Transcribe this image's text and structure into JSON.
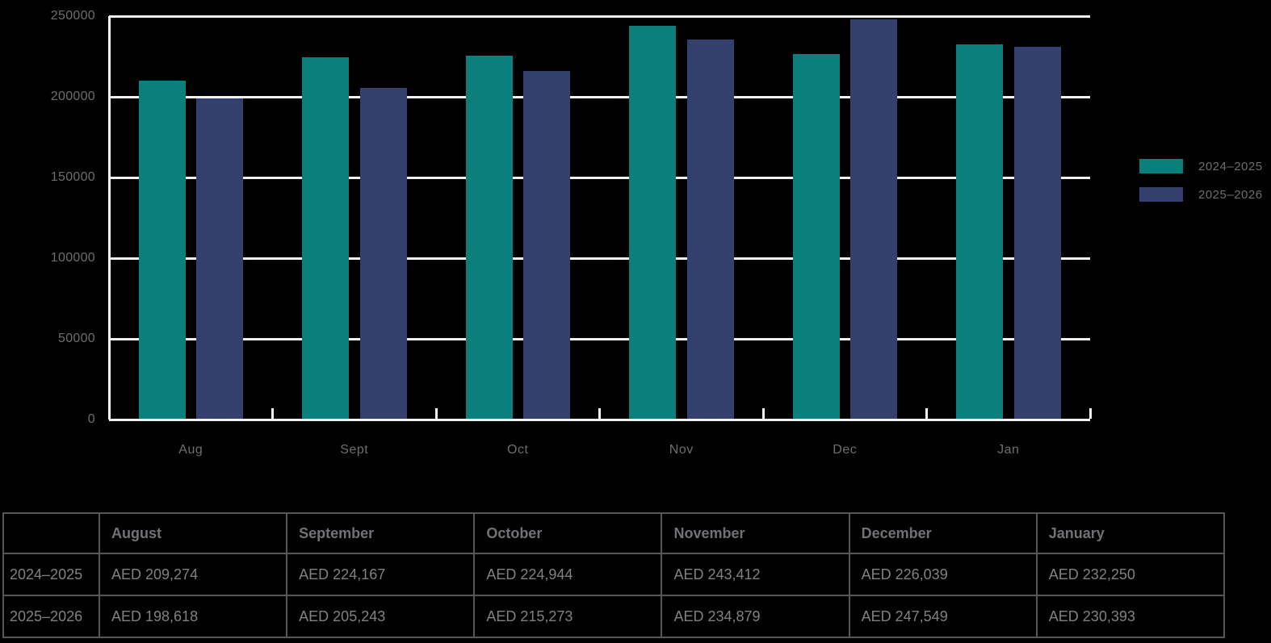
{
  "chart_data": {
    "type": "bar",
    "title": "",
    "xlabel": "",
    "ylabel": "",
    "categories": [
      "Aug",
      "Sept",
      "Oct",
      "Nov",
      "Dec",
      "Jan"
    ],
    "series": [
      {
        "name": "2024–2025",
        "color": "#0B7F7B",
        "values": [
          209274,
          224167,
          224944,
          243412,
          226039,
          232250
        ]
      },
      {
        "name": "2025–2026",
        "color": "#33406E",
        "values": [
          198618,
          205243,
          215273,
          234879,
          247549,
          230393
        ]
      }
    ],
    "ylim": [
      0,
      250000
    ],
    "yticks": [
      0,
      50000,
      100000,
      150000,
      200000,
      250000
    ],
    "ytick_labels": [
      "0",
      "50000",
      "100000",
      "150000",
      "200000",
      "250000"
    ],
    "grid": true,
    "legend_position": "right",
    "currency": "AED"
  },
  "legend": {
    "items": [
      {
        "label": "2024–2025",
        "color": "#0B7F7B"
      },
      {
        "label": "2025–2026",
        "color": "#33406E"
      }
    ]
  },
  "table": {
    "columns": [
      "",
      "August",
      "September",
      "October",
      "November",
      "December",
      "January"
    ],
    "rows": [
      {
        "label": "2024–2025",
        "values": [
          "AED 209,274",
          "AED 224,167",
          "AED 224,944",
          "AED 243,412",
          "AED 226,039",
          "AED 232,250"
        ]
      },
      {
        "label": "2025–2026",
        "values": [
          "AED 198,618",
          "AED 205,243",
          "AED 215,273",
          "AED 234,879",
          "AED 247,549",
          "AED 230,393"
        ]
      }
    ]
  },
  "colors": {
    "background": "#000000",
    "gridline": "#f2f2f2",
    "axis_text": "#6d6e71",
    "legend_text": "#6d6e71",
    "table_border": "#55565a",
    "table_header_text": "#717276",
    "table_cell_text": "#7f8184",
    "series_teal": "#0B7F7B",
    "series_navy": "#33406E"
  }
}
